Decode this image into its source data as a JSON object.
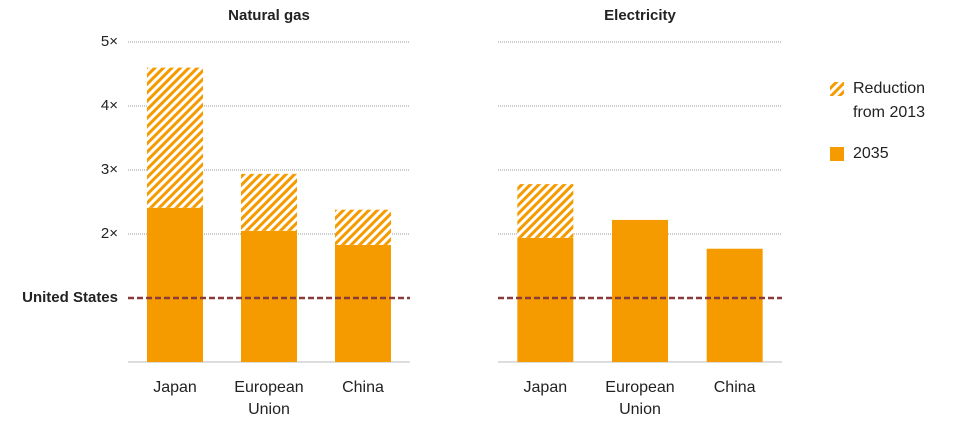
{
  "chart_data": [
    {
      "type": "bar",
      "stacked": true,
      "title": "Natural gas",
      "categories": [
        "Japan",
        "European Union",
        "China"
      ],
      "series": [
        {
          "name": "2035",
          "color": "#f59b00",
          "values": [
            2.41,
            2.05,
            1.83
          ]
        },
        {
          "name": "Reduction from 2013",
          "color": "#f59b00",
          "pattern": "hatch",
          "values": [
            2.19,
            0.89,
            0.55
          ]
        }
      ],
      "ylim": [
        0,
        5
      ],
      "yticks": [
        {
          "value": 2,
          "label": "2×"
        },
        {
          "value": 3,
          "label": "3×"
        },
        {
          "value": 4,
          "label": "4×"
        },
        {
          "value": 5,
          "label": "5×"
        }
      ],
      "grid": true
    },
    {
      "type": "bar",
      "stacked": true,
      "title": "Electricity",
      "categories": [
        "Japan",
        "European Union",
        "China"
      ],
      "series": [
        {
          "name": "2035",
          "color": "#f59b00",
          "values": [
            1.94,
            2.22,
            1.77
          ]
        },
        {
          "name": "Reduction from 2013",
          "color": "#f59b00",
          "pattern": "hatch",
          "values": [
            0.84,
            0,
            0
          ]
        }
      ],
      "ylim": [
        0,
        5
      ],
      "sharey": true,
      "grid": true
    }
  ],
  "reference_line": {
    "value": 1,
    "label": "United States",
    "color": "#8b3a3a"
  }
}
